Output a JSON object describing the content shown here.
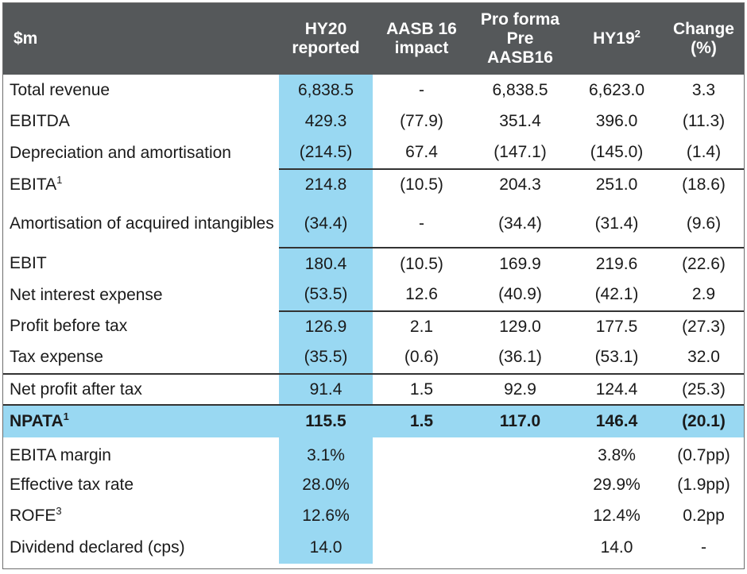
{
  "header": {
    "label": "$m",
    "cols": [
      {
        "line1": "HY20",
        "line2": "reported"
      },
      {
        "line1": "AASB 16",
        "line2": "impact"
      },
      {
        "line1": "Pro forma",
        "line2": "Pre",
        "line3": "AASB16"
      },
      {
        "line1": "HY19",
        "sup": "2"
      },
      {
        "line1": "Change",
        "line2": "(%)"
      }
    ]
  },
  "rows": [
    {
      "label": "Total revenue",
      "hy20": "6,838.5",
      "aasb": "-",
      "pro": "6,838.5",
      "hy19": "6,623.0",
      "chg": "3.3"
    },
    {
      "label": "EBITDA",
      "hy20": "429.3",
      "aasb": "(77.9)",
      "pro": "351.4",
      "hy19": "396.0",
      "chg": "(11.3)"
    },
    {
      "label": "Depreciation and amortisation",
      "hy20": "(214.5)",
      "aasb": "67.4",
      "pro": "(147.1)",
      "hy19": "(145.0)",
      "chg": "(1.4)"
    },
    {
      "label": "EBITA",
      "sup": "1",
      "hy20": "214.8",
      "aasb": "(10.5)",
      "pro": "204.3",
      "hy19": "251.0",
      "chg": "(18.6)"
    },
    {
      "label": "Amortisation of acquired intangibles",
      "hy20": "(34.4)",
      "aasb": "-",
      "pro": "(34.4)",
      "hy19": "(31.4)",
      "chg": "(9.6)"
    },
    {
      "label": "EBIT",
      "hy20": "180.4",
      "aasb": "(10.5)",
      "pro": "169.9",
      "hy19": "219.6",
      "chg": "(22.6)"
    },
    {
      "label": "Net interest expense",
      "hy20": "(53.5)",
      "aasb": "12.6",
      "pro": "(40.9)",
      "hy19": "(42.1)",
      "chg": "2.9"
    },
    {
      "label": "Profit before tax",
      "hy20": "126.9",
      "aasb": "2.1",
      "pro": "129.0",
      "hy19": "177.5",
      "chg": "(27.3)"
    },
    {
      "label": "Tax expense",
      "hy20": "(35.5)",
      "aasb": "(0.6)",
      "pro": "(36.1)",
      "hy19": "(53.1)",
      "chg": "32.0"
    },
    {
      "label": "Net profit after tax",
      "hy20": "91.4",
      "aasb": "1.5",
      "pro": "92.9",
      "hy19": "124.4",
      "chg": "(25.3)"
    }
  ],
  "total": {
    "label": "NPATA",
    "sup": "1",
    "hy20": "115.5",
    "aasb": "1.5",
    "pro": "117.0",
    "hy19": "146.4",
    "chg": "(20.1)"
  },
  "metrics": [
    {
      "label": "EBITA margin",
      "hy20": "3.1%",
      "hy19": "3.8%",
      "chg": "(0.7pp)"
    },
    {
      "label": "Effective tax rate",
      "hy20": "28.0%",
      "hy19": "29.9%",
      "chg": "(1.9pp)"
    },
    {
      "label": "ROFE",
      "sup": "3",
      "hy20": "12.6%",
      "hy19": "12.4%",
      "chg": "0.2pp"
    },
    {
      "label": "Dividend declared (cps)",
      "hy20": "14.0",
      "hy19": "14.0",
      "chg": "-"
    }
  ],
  "colors": {
    "header_bg": "#55585a",
    "highlight": "#99d8f2"
  }
}
